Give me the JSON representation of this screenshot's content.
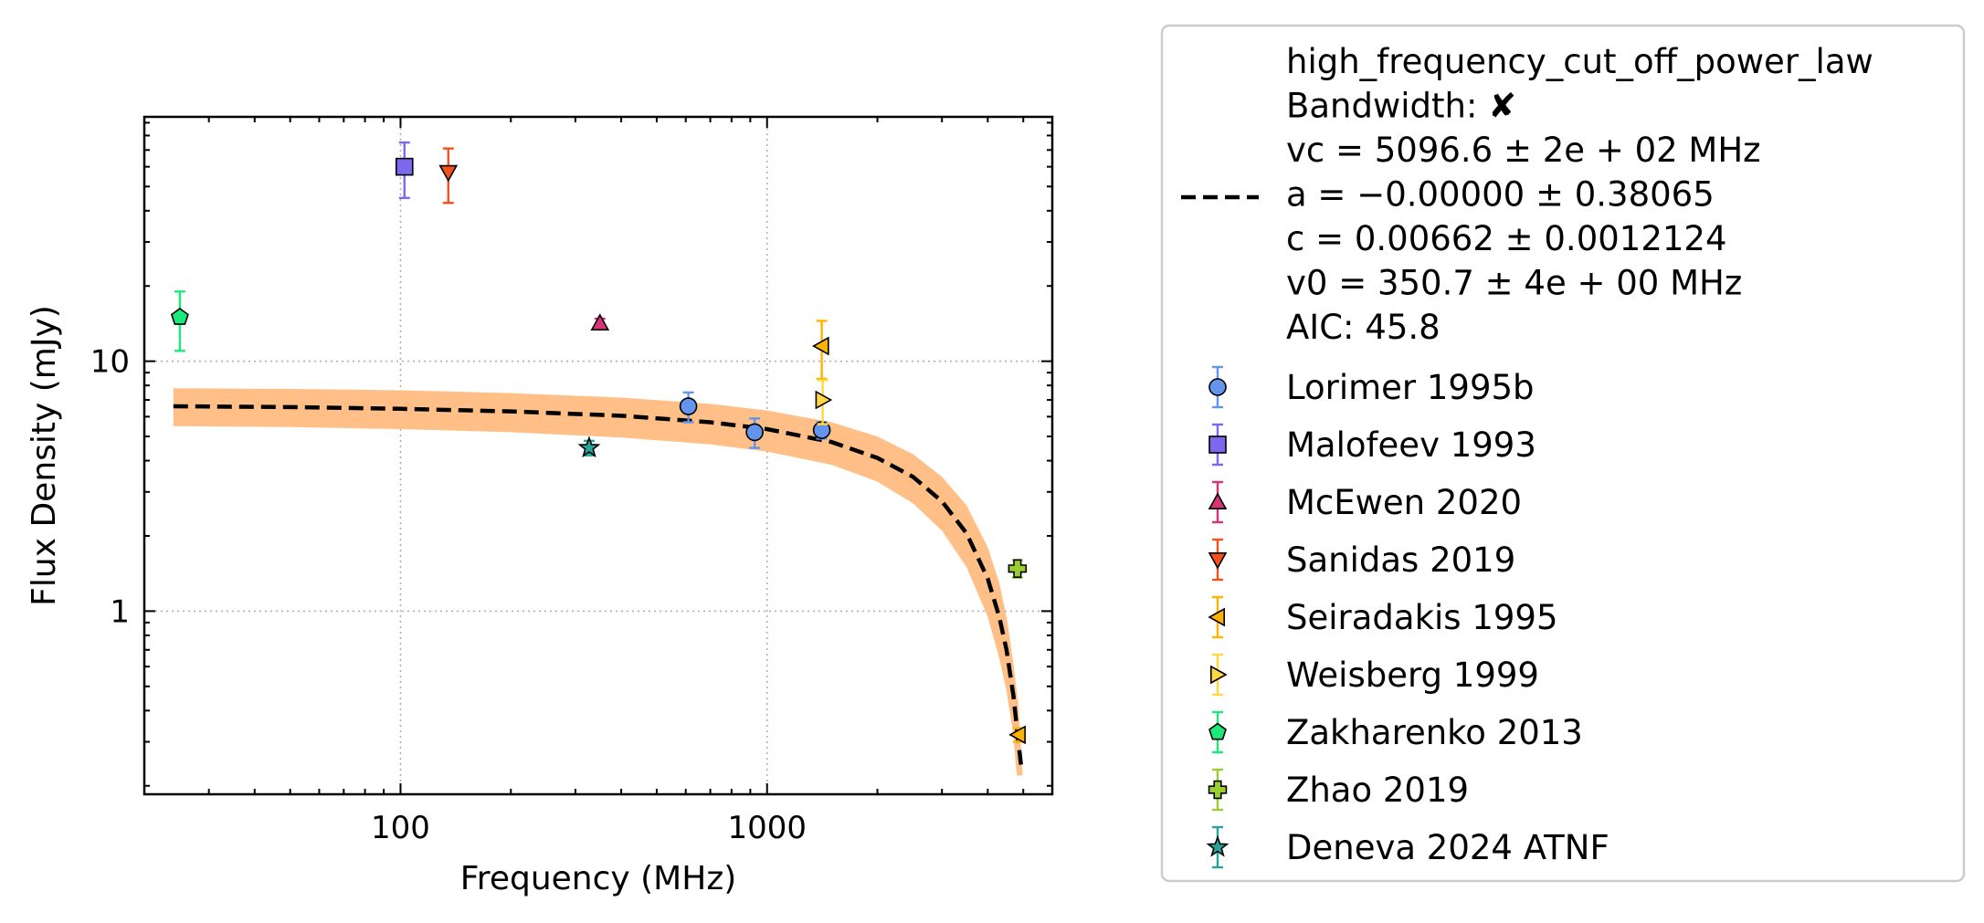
{
  "chart_data": {
    "type": "scatter",
    "xlabel": "Frequency (MHz)",
    "ylabel": "Flux Density (mJy)",
    "x_scale": "log",
    "y_scale": "log",
    "xlim": [
      20,
      6000
    ],
    "ylim": [
      0.185,
      95
    ],
    "grid": true,
    "legend_position": "outside-right",
    "x_ticks": [
      {
        "value": 100,
        "label": "100"
      },
      {
        "value": 1000,
        "label": "1000"
      }
    ],
    "y_ticks": [
      {
        "value": 1,
        "label": "1"
      },
      {
        "value": 10,
        "label": "10"
      }
    ],
    "fit": {
      "label_lines": [
        "high_frequency_cut_off_power_law",
        "Bandwidth: ✘",
        "vc = 5096.6 ± 2e + 02 MHz",
        "a = −0.00000 ± 0.38065",
        "c = 0.00662 ± 0.0012124",
        "v0 = 350.7 ± 4e + 00 MHz",
        "AIC: 45.8"
      ],
      "line_color": "#000000",
      "band_color": "#ffbf86",
      "x_range": [
        24,
        4980
      ],
      "curve": [
        [
          24,
          6.6
        ],
        [
          50,
          6.55
        ],
        [
          100,
          6.45
        ],
        [
          200,
          6.3
        ],
        [
          400,
          6.05
        ],
        [
          700,
          5.7
        ],
        [
          1000,
          5.35
        ],
        [
          1500,
          4.75
        ],
        [
          2000,
          4.1
        ],
        [
          2500,
          3.45
        ],
        [
          3000,
          2.75
        ],
        [
          3500,
          2.05
        ],
        [
          4000,
          1.35
        ],
        [
          4300,
          0.95
        ],
        [
          4500,
          0.7
        ],
        [
          4700,
          0.46
        ],
        [
          4850,
          0.3
        ],
        [
          4950,
          0.23
        ]
      ],
      "band_upper": [
        [
          24,
          7.8
        ],
        [
          50,
          7.75
        ],
        [
          100,
          7.65
        ],
        [
          200,
          7.45
        ],
        [
          400,
          7.15
        ],
        [
          700,
          6.75
        ],
        [
          1000,
          6.35
        ],
        [
          1500,
          5.7
        ],
        [
          2000,
          5.0
        ],
        [
          2500,
          4.25
        ],
        [
          3000,
          3.45
        ],
        [
          3500,
          2.65
        ],
        [
          4000,
          1.8
        ],
        [
          4300,
          1.3
        ],
        [
          4500,
          0.95
        ],
        [
          4700,
          0.62
        ],
        [
          4850,
          0.42
        ],
        [
          4980,
          0.22
        ]
      ],
      "band_lower": [
        [
          24,
          5.5
        ],
        [
          50,
          5.45
        ],
        [
          100,
          5.35
        ],
        [
          200,
          5.2
        ],
        [
          400,
          4.95
        ],
        [
          700,
          4.65
        ],
        [
          1000,
          4.35
        ],
        [
          1500,
          3.85
        ],
        [
          2000,
          3.3
        ],
        [
          2500,
          2.7
        ],
        [
          3000,
          2.1
        ],
        [
          3500,
          1.5
        ],
        [
          4000,
          0.95
        ],
        [
          4300,
          0.65
        ],
        [
          4500,
          0.48
        ],
        [
          4700,
          0.32
        ],
        [
          4800,
          0.22
        ]
      ]
    },
    "series": [
      {
        "name": "Lorimer 1995b",
        "marker": "circle",
        "color": "#6495ed",
        "points": [
          {
            "x": 610,
            "y": 6.6,
            "yerr": 0.9
          },
          {
            "x": 925,
            "y": 5.2,
            "yerr": 0.7
          },
          {
            "x": 1410,
            "y": 5.3,
            "yerr": 0.4
          }
        ]
      },
      {
        "name": "Malofeev 1993",
        "marker": "square",
        "color": "#7b68ee",
        "points": [
          {
            "x": 102.5,
            "y": 60,
            "yerr": 15
          }
        ]
      },
      {
        "name": "McEwen 2020",
        "marker": "triangle-up",
        "color": "#d6337a",
        "points": [
          {
            "x": 350,
            "y": 14.2,
            "yerr": 0.6
          }
        ]
      },
      {
        "name": "Sanidas 2019",
        "marker": "triangle-down",
        "color": "#f4511e",
        "points": [
          {
            "x": 135,
            "y": 57,
            "yerr": 14
          }
        ]
      },
      {
        "name": "Seiradakis 1995",
        "marker": "triangle-left",
        "color": "#ffb300",
        "points": [
          {
            "x": 1410,
            "y": 11.5,
            "yerr": 3
          },
          {
            "x": 4850,
            "y": 0.32,
            "yerr": 0.02
          }
        ]
      },
      {
        "name": "Weisberg 1999",
        "marker": "triangle-right",
        "color": "#ffd740",
        "points": [
          {
            "x": 1418,
            "y": 7.0,
            "yerr": 1.4
          }
        ]
      },
      {
        "name": "Zakharenko 2013",
        "marker": "pentagon",
        "color": "#1de97a",
        "points": [
          {
            "x": 25,
            "y": 15,
            "yerr": 4
          }
        ]
      },
      {
        "name": "Zhao 2019",
        "marker": "plus",
        "color": "#9acd32",
        "points": [
          {
            "x": 4820,
            "y": 1.48,
            "yerr": 0.12
          }
        ]
      },
      {
        "name": "Deneva 2024 ATNF",
        "marker": "star",
        "color": "#26a69a",
        "points": [
          {
            "x": 327,
            "y": 4.5,
            "yerr": 0.3
          }
        ]
      }
    ]
  }
}
